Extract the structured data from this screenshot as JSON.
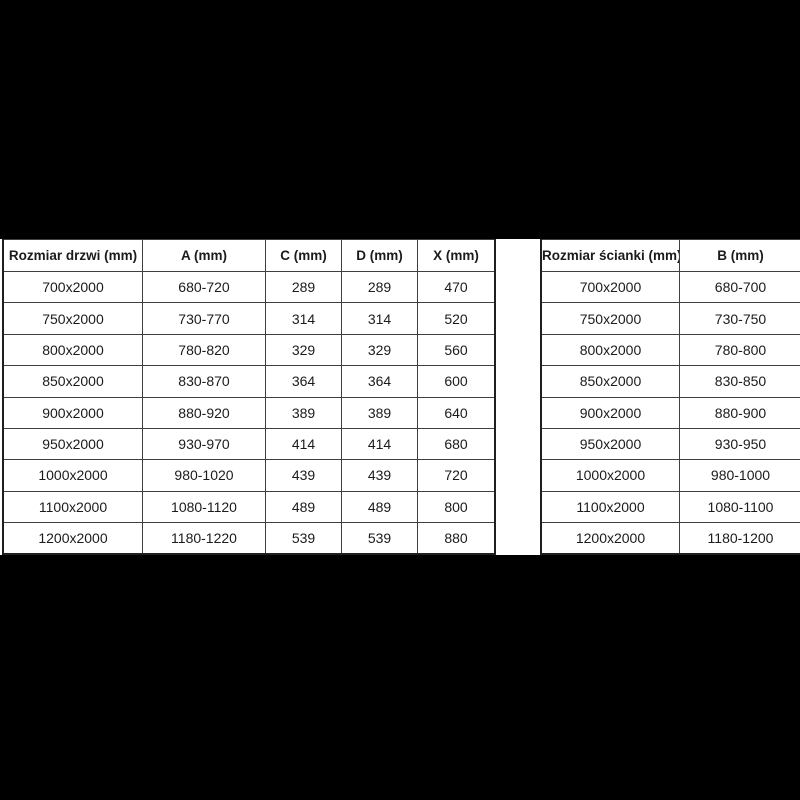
{
  "colors": {
    "page_background": "#000000",
    "band_background": "#ffffff",
    "table_border": "#3f3f3f",
    "text": "#1b1b1b"
  },
  "tables": {
    "doors": {
      "title": "door-dimensions-table",
      "headers": [
        "Rozmiar drzwi (mm)",
        "A (mm)",
        "C (mm)",
        "D (mm)",
        "X (mm)"
      ],
      "rows": [
        [
          "700x2000",
          "680-720",
          "289",
          "289",
          "470"
        ],
        [
          "750x2000",
          "730-770",
          "314",
          "314",
          "520"
        ],
        [
          "800x2000",
          "780-820",
          "329",
          "329",
          "560"
        ],
        [
          "850x2000",
          "830-870",
          "364",
          "364",
          "600"
        ],
        [
          "900x2000",
          "880-920",
          "389",
          "389",
          "640"
        ],
        [
          "950x2000",
          "930-970",
          "414",
          "414",
          "680"
        ],
        [
          "1000x2000",
          "980-1020",
          "439",
          "439",
          "720"
        ],
        [
          "1100x2000",
          "1080-1120",
          "489",
          "489",
          "800"
        ],
        [
          "1200x2000",
          "1180-1220",
          "539",
          "539",
          "880"
        ]
      ]
    },
    "walls": {
      "title": "wall-dimensions-table",
      "headers": [
        "Rozmiar ścianki (mm)",
        "B (mm)"
      ],
      "rows": [
        [
          "700x2000",
          "680-700"
        ],
        [
          "750x2000",
          "730-750"
        ],
        [
          "800x2000",
          "780-800"
        ],
        [
          "850x2000",
          "830-850"
        ],
        [
          "900x2000",
          "880-900"
        ],
        [
          "950x2000",
          "930-950"
        ],
        [
          "1000x2000",
          "980-1000"
        ],
        [
          "1100x2000",
          "1080-1100"
        ],
        [
          "1200x2000",
          "1180-1200"
        ]
      ]
    }
  }
}
